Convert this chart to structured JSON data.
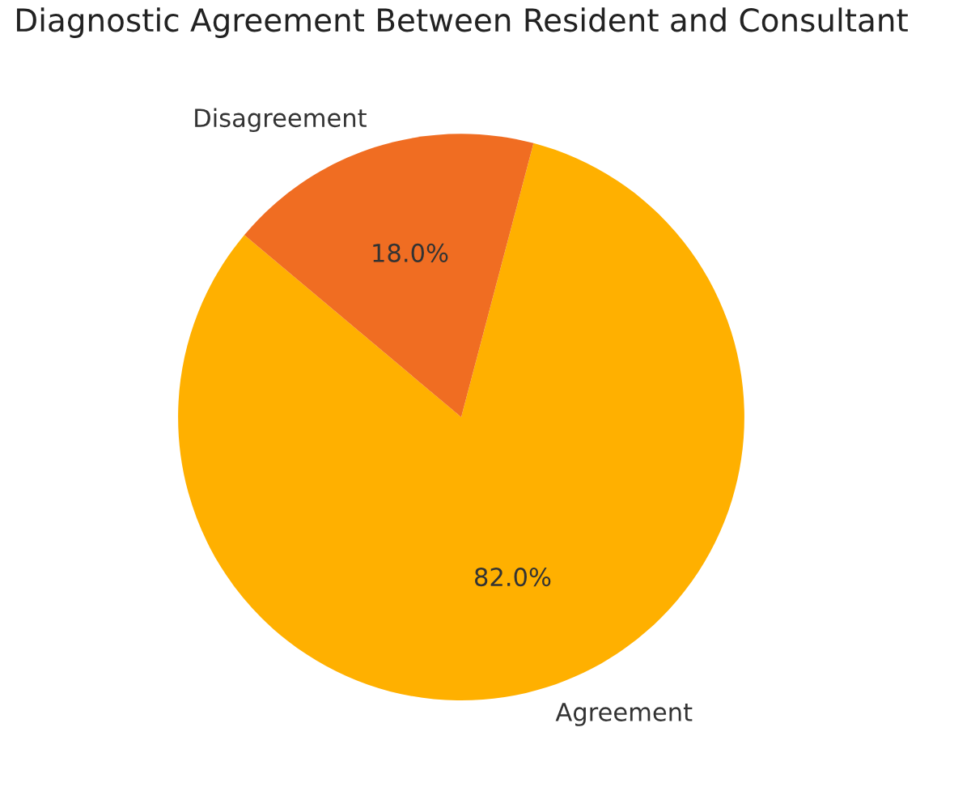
{
  "chart_data": {
    "type": "pie",
    "title": "Diagnostic Agreement Between Resident and Consultant",
    "categories": [
      "Agreement",
      "Disagreement"
    ],
    "values": [
      82,
      18
    ],
    "colors": [
      "#ffb000",
      "#f06d22"
    ],
    "value_labels": [
      "82.0%",
      "18.0%"
    ],
    "legend": false
  }
}
